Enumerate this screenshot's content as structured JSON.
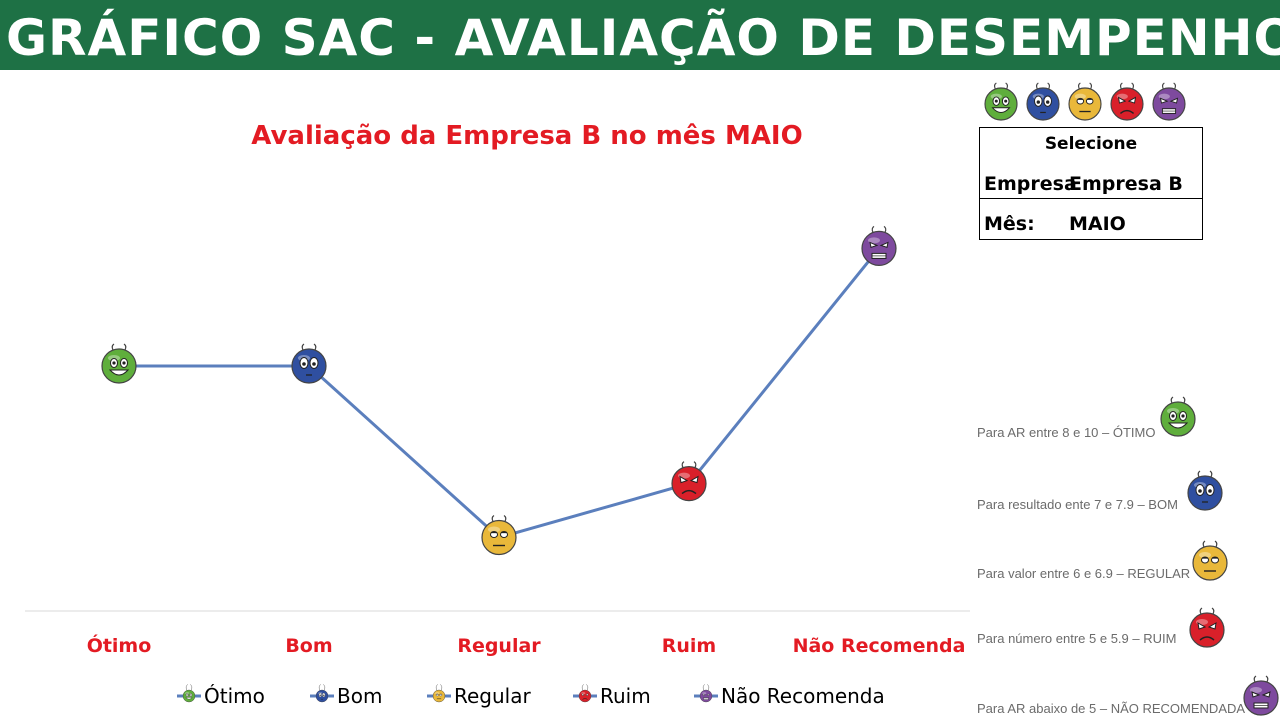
{
  "banner": {
    "title": "GRÁFICO SAC - AVALIAÇÃO DE DESEMPENHO"
  },
  "selector": {
    "title": "Selecione",
    "company_label": "Empresa",
    "company_value": "Empresa B",
    "month_label": "Mês:",
    "month_value": "MAIO"
  },
  "header_faces": [
    "green",
    "blue",
    "yellow",
    "red",
    "purple"
  ],
  "rules": [
    {
      "text": "Para AR entre 8 e 10 – ÓTIMO",
      "face": "green"
    },
    {
      "text": "Para resultado ente 7 e 7.9 – BOM",
      "face": "blue"
    },
    {
      "text": "Para valor entre 6 e 6.9 – REGULAR",
      "face": "yellow"
    },
    {
      "text": "Para número entre 5 e 5.9 –  RUIM",
      "face": "red"
    },
    {
      "text": "Para AR abaixo de 5 – NÃO RECOMENDADA",
      "face": "purple"
    }
  ],
  "colors": {
    "banner": "#1e7145",
    "title": "#e31b23",
    "line": "#5b7fbd",
    "green": "#5fae3c",
    "blue": "#2f4fa0",
    "yellow": "#e9b83a",
    "red": "#d9202a",
    "purple": "#7e4a9e"
  },
  "chart_data": {
    "type": "line",
    "title": "Avaliação da Empresa B no mês MAIO",
    "categories": [
      "Ótimo",
      "Bom",
      "Regular",
      "Ruim",
      "Não Recomenda"
    ],
    "values": [
      5.0,
      5.0,
      1.5,
      2.6,
      7.4
    ],
    "ylim": [
      0,
      9
    ],
    "grid": false,
    "legend_position": "bottom",
    "legend": [
      {
        "label": "Ótimo",
        "color": "green"
      },
      {
        "label": "Bom",
        "color": "blue"
      },
      {
        "label": "Regular",
        "color": "yellow"
      },
      {
        "label": "Ruim",
        "color": "red"
      },
      {
        "label": "Não Recomenda",
        "color": "purple"
      }
    ],
    "point_faces": [
      "green",
      "blue",
      "yellow",
      "red",
      "purple"
    ]
  }
}
